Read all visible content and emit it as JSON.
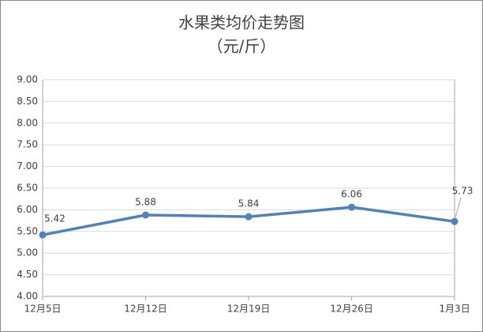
{
  "chart_data": {
    "type": "line",
    "title": "水果类均价走势图",
    "subtitle": "（元/斤）",
    "categories": [
      "12月5日",
      "12月12日",
      "12月19日",
      "12月26日",
      "1月3日"
    ],
    "values": [
      5.42,
      5.88,
      5.84,
      6.06,
      5.73
    ],
    "color": "#4f81bd",
    "ylim": [
      4,
      9
    ],
    "yticks": [
      {
        "value": 4,
        "label": "4.00"
      },
      {
        "value": 4.5,
        "label": "4.50"
      },
      {
        "value": 5,
        "label": "5.00"
      },
      {
        "value": 5.5,
        "label": "5.50"
      },
      {
        "value": 6,
        "label": "6.00"
      },
      {
        "value": 6.5,
        "label": "6.50"
      },
      {
        "value": 7,
        "label": "7.00"
      },
      {
        "value": 7.5,
        "label": "7.50"
      },
      {
        "value": 8,
        "label": "8.00"
      },
      {
        "value": 8.5,
        "label": "8.50"
      },
      {
        "value": 9,
        "label": "9.00"
      }
    ],
    "grid": true
  }
}
